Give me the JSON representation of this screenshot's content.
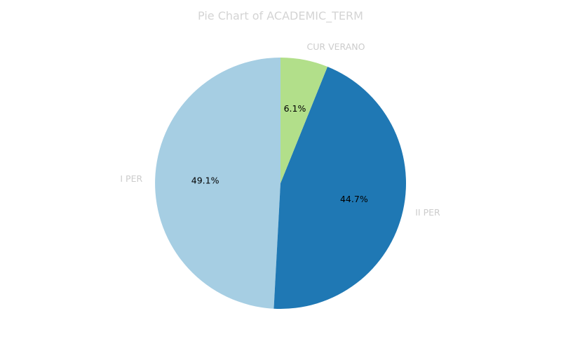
{
  "chart_data": {
    "type": "pie",
    "title": "Pie Chart of ACADEMIC_TERM",
    "categories": [
      "I PER",
      "II PER",
      "CUR VERANO"
    ],
    "values": [
      49.1,
      44.7,
      6.1
    ],
    "value_labels": [
      "49.1%",
      "44.7%",
      "6.1%"
    ],
    "colors": [
      "#a6cee3",
      "#1f78b4",
      "#b2df8a"
    ],
    "legend": "none"
  }
}
